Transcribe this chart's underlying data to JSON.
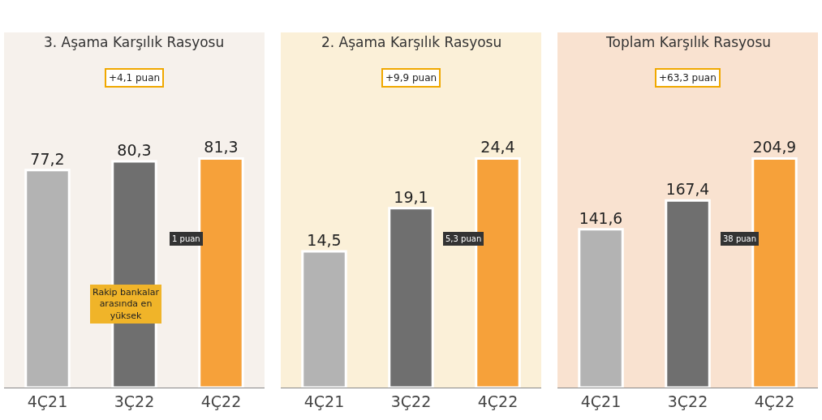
{
  "chart_data": [
    {
      "type": "bar",
      "title": "3. Aşama Karşılık Rasyosu",
      "categories": [
        "4Ç21",
        "3Ç22",
        "4Ç22"
      ],
      "values": [
        77.2,
        80.3,
        81.3
      ],
      "value_labels": [
        "77,2",
        "80,3",
        "81,3"
      ],
      "colors": [
        "#b3b3b3",
        "#6f6f6f",
        "#f6a13a"
      ],
      "annotations": [
        "+4,1 puan",
        "1 puan",
        "Rakip bankalar arasında en yüksek"
      ]
    },
    {
      "type": "bar",
      "title": "2. Aşama Karşılık Rasyosu",
      "categories": [
        "4Ç21",
        "3Ç22",
        "4Ç22"
      ],
      "values": [
        14.5,
        19.1,
        24.4
      ],
      "value_labels": [
        "14,5",
        "19,1",
        "24,4"
      ],
      "colors": [
        "#b3b3b3",
        "#6f6f6f",
        "#f6a13a"
      ],
      "annotations": [
        "+9,9 puan",
        "5,3 puan"
      ]
    },
    {
      "type": "bar",
      "title": "Toplam Karşılık Rasyosu",
      "categories": [
        "4Ç21",
        "3Ç22",
        "4Ç22"
      ],
      "values": [
        141.6,
        167.4,
        204.9
      ],
      "value_labels": [
        "141,6",
        "167,4",
        "204,9"
      ],
      "colors": [
        "#b3b3b3",
        "#6f6f6f",
        "#f6a13a"
      ],
      "annotations": [
        "+63,3 puan",
        "38 puan"
      ]
    }
  ]
}
